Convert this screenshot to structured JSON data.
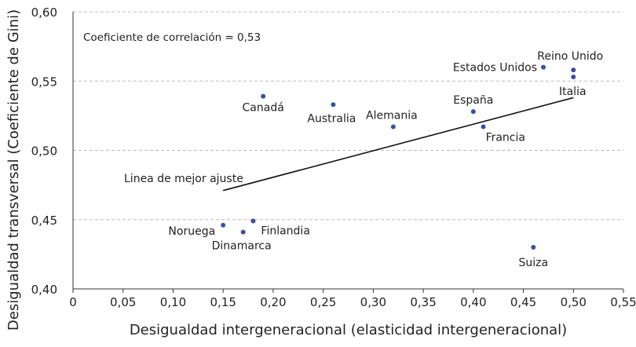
{
  "chart_data": {
    "type": "scatter",
    "xlabel": "Desigualdad intergeneracional (elasticidad intergeneracional)",
    "ylabel": "Desigualdad transversal (Coeficiente de Gini)",
    "xlim": [
      0,
      0.55
    ],
    "ylim": [
      0.4,
      0.6
    ],
    "xticks": [
      "0",
      "0,05",
      "0,10",
      "0,15",
      "0,20",
      "0,25",
      "0,30",
      "0,35",
      "0,40",
      "0,45",
      "0,50",
      "0,55"
    ],
    "yticks": [
      "0,40",
      "0,45",
      "0,50",
      "0,55",
      "0,60"
    ],
    "grid": "horizontal dashed",
    "annotation": "Coeficiente de correlación = 0,53",
    "fit_line": {
      "label": "Linea de mejor ajuste",
      "x": [
        0.15,
        0.5
      ],
      "y": [
        0.471,
        0.538
      ]
    },
    "points": [
      {
        "label": "Noruega",
        "x": 0.15,
        "y": 0.446
      },
      {
        "label": "Dinamarca",
        "x": 0.17,
        "y": 0.441
      },
      {
        "label": "Finlandia",
        "x": 0.18,
        "y": 0.449
      },
      {
        "label": "Canadá",
        "x": 0.19,
        "y": 0.539
      },
      {
        "label": "Australia",
        "x": 0.26,
        "y": 0.533
      },
      {
        "label": "Alemania",
        "x": 0.32,
        "y": 0.517
      },
      {
        "label": "España",
        "x": 0.4,
        "y": 0.528
      },
      {
        "label": "Francia",
        "x": 0.41,
        "y": 0.517
      },
      {
        "label": "Suiza",
        "x": 0.46,
        "y": 0.43
      },
      {
        "label": "Estados Unidos",
        "x": 0.47,
        "y": 0.56
      },
      {
        "label": "Reino Unido",
        "x": 0.5,
        "y": 0.558
      },
      {
        "label": "Italia",
        "x": 0.5,
        "y": 0.553
      }
    ],
    "colors": {
      "point": "#3b4fa0",
      "grid": "#bbbbbb",
      "line": "#111111"
    }
  }
}
